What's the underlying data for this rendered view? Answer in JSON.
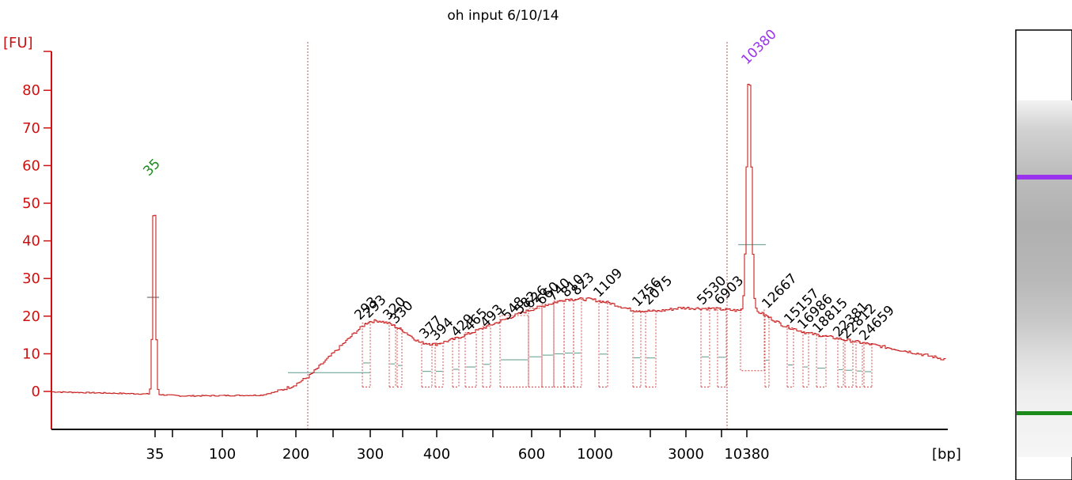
{
  "chart_data": {
    "type": "line",
    "title": "oh input 6/10/14",
    "ylabel": "[FU]",
    "xlabel": "[bp]",
    "ylim": [
      -10,
      90
    ],
    "y_ticks": [
      0,
      10,
      20,
      30,
      40,
      50,
      60,
      70,
      80
    ],
    "x_tick_labels": [
      "35",
      "100",
      "200",
      "300",
      "400",
      "600",
      "1000",
      "3000",
      "10380"
    ],
    "lower_marker": {
      "label": "35",
      "size_bp": 35,
      "peak_fu": 55,
      "color": "#1a8a1a"
    },
    "upper_marker": {
      "label": "10380",
      "size_bp": 10380,
      "peak_fu": 85,
      "color": "#9933ee"
    },
    "peaks": [
      {
        "label": "293",
        "fu": 18
      },
      {
        "label": "293",
        "fu": 18.5
      },
      {
        "label": "320",
        "fu": 18
      },
      {
        "label": "330",
        "fu": 17
      },
      {
        "label": "377",
        "fu": 13
      },
      {
        "label": "394",
        "fu": 12.5
      },
      {
        "label": "429",
        "fu": 13.5
      },
      {
        "label": "465",
        "fu": 15
      },
      {
        "label": "493",
        "fu": 16
      },
      {
        "label": "548",
        "fu": 18
      },
      {
        "label": "582",
        "fu": 19.5
      },
      {
        "label": "626",
        "fu": 21
      },
      {
        "label": "660",
        "fu": 22
      },
      {
        "label": "740",
        "fu": 23
      },
      {
        "label": "810",
        "fu": 24
      },
      {
        "label": "823",
        "fu": 24.5
      },
      {
        "label": "1109",
        "fu": 24
      },
      {
        "label": "1756",
        "fu": 21.5
      },
      {
        "label": "2075",
        "fu": 22
      },
      {
        "label": "5530",
        "fu": 22
      },
      {
        "label": "6903",
        "fu": 22
      },
      {
        "label": "12667",
        "fu": 21
      },
      {
        "label": "15157",
        "fu": 17
      },
      {
        "label": "16986",
        "fu": 15.5
      },
      {
        "label": "18815",
        "fu": 14.5
      },
      {
        "label": "22381",
        "fu": 13.5
      },
      {
        "label": "22812",
        "fu": 13
      },
      {
        "label": "24659",
        "fu": 12.5
      }
    ],
    "grid": false,
    "legend": "none"
  }
}
